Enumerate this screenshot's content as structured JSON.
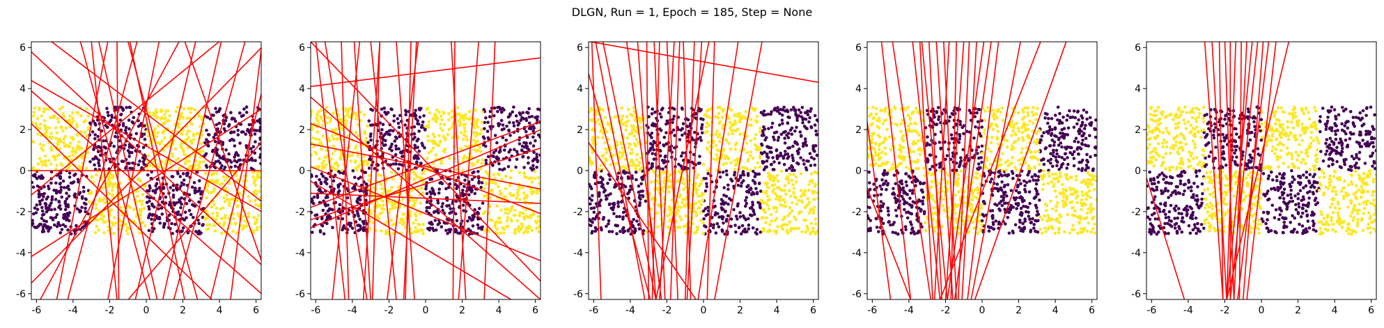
{
  "figure": {
    "title": "DLGN, Run = 1, Epoch = 185, Step = None"
  },
  "chart_data": {
    "type": "scatter",
    "panel_count": 5,
    "xlim": [
      -6.28,
      6.28
    ],
    "ylim": [
      -6.28,
      6.28
    ],
    "xticks": [
      -6,
      -4,
      -2,
      0,
      2,
      4,
      6
    ],
    "yticks": [
      -6,
      -4,
      -2,
      0,
      2,
      4,
      6
    ],
    "grid": false,
    "legend": "none",
    "colors": {
      "class_0": "#440154",
      "class_1": "#fde725",
      "boundary": "#ff0000"
    },
    "data_region": {
      "x_range": [
        -6.28,
        6.28
      ],
      "y_range": [
        -3.1,
        3.1
      ]
    },
    "class_rule": "yellow where sign(sin(x)) equals sign(y); dark purple elsewhere",
    "points_per_panel": 1500,
    "panels": [
      {
        "boundary_lines": [
          [
            -6.3,
            5.8,
            6.3,
            -4.6
          ],
          [
            -6.3,
            4.4,
            6.3,
            -2.0
          ],
          [
            -6.3,
            3.9,
            6.3,
            -6.0
          ],
          [
            -6.3,
            -4.2,
            6.3,
            3.0
          ],
          [
            -6.3,
            -5.5,
            6.3,
            6.0
          ],
          [
            -6.3,
            0.0,
            6.3,
            0.0
          ],
          [
            -4.3,
            -6.3,
            -0.5,
            6.3
          ],
          [
            -3.0,
            6.3,
            -1.6,
            -6.3
          ],
          [
            -2.6,
            6.3,
            0.6,
            -6.3
          ],
          [
            -2.1,
            6.3,
            -4.9,
            -6.3
          ],
          [
            -1.6,
            6.3,
            -1.5,
            -6.3
          ],
          [
            -0.9,
            6.3,
            2.1,
            -6.3
          ],
          [
            -0.6,
            -6.3,
            2.7,
            6.3
          ],
          [
            0.2,
            -6.3,
            -3.6,
            6.3
          ],
          [
            0.7,
            6.3,
            -2.1,
            -6.3
          ],
          [
            1.5,
            -6.3,
            5.4,
            6.3
          ],
          [
            2.1,
            6.3,
            6.3,
            -4.4
          ],
          [
            3.5,
            -6.3,
            6.3,
            3.8
          ],
          [
            4.1,
            6.3,
            0.9,
            -6.3
          ],
          [
            4.6,
            -6.3,
            6.3,
            6.0
          ],
          [
            -6.3,
            2.3,
            3.6,
            -6.3
          ],
          [
            -5.2,
            6.3,
            6.3,
            -1.5
          ],
          [
            -6.3,
            -1.2,
            4.0,
            6.3
          ],
          [
            -1.0,
            -6.3,
            6.3,
            1.4
          ],
          [
            -5.8,
            -6.3,
            1.8,
            6.3
          ],
          [
            2.8,
            -6.3,
            -1.0,
            6.3
          ]
        ]
      },
      {
        "boundary_lines": [
          [
            -6.3,
            4.1,
            6.3,
            5.5
          ],
          [
            -6.3,
            3.6,
            6.3,
            -6.3
          ],
          [
            -6.3,
            0.2,
            6.3,
            -4.4
          ],
          [
            -6.3,
            -1.8,
            6.3,
            2.4
          ],
          [
            -6.3,
            -2.4,
            6.3,
            1.1
          ],
          [
            -6.3,
            -1.1,
            6.3,
            -1.6
          ],
          [
            -6.3,
            -0.5,
            4.7,
            -6.3
          ],
          [
            -6.3,
            2.3,
            6.3,
            -2.1
          ],
          [
            -6.3,
            -2.8,
            6.3,
            2.0
          ],
          [
            -6.0,
            6.3,
            -4.4,
            -6.3
          ],
          [
            -5.5,
            6.3,
            -3.2,
            -6.3
          ],
          [
            -5.1,
            -6.3,
            -3.6,
            6.3
          ],
          [
            -4.6,
            6.3,
            -4.2,
            -6.3
          ],
          [
            -3.9,
            6.3,
            -3.0,
            -6.3
          ],
          [
            -3.4,
            -6.3,
            -2.5,
            6.3
          ],
          [
            -3.0,
            6.3,
            -1.6,
            -6.3
          ],
          [
            -2.5,
            6.3,
            -2.9,
            -6.3
          ],
          [
            -2.1,
            -6.3,
            -0.4,
            6.3
          ],
          [
            -1.6,
            6.3,
            -0.6,
            -6.3
          ],
          [
            -1.2,
            -6.3,
            -0.5,
            6.3
          ],
          [
            -0.8,
            6.3,
            -1.1,
            -6.3
          ],
          [
            1.6,
            6.3,
            1.5,
            -6.3
          ],
          [
            1.4,
            6.3,
            2.2,
            -6.3
          ],
          [
            1.8,
            -6.3,
            2.9,
            6.3
          ],
          [
            3.2,
            -6.3,
            3.8,
            6.3
          ],
          [
            -6.3,
            6.3,
            6.3,
            -5.4
          ],
          [
            -6.3,
            1.3,
            6.3,
            -0.9
          ]
        ]
      },
      {
        "boundary_lines": [
          [
            -6.3,
            6.3,
            6.3,
            4.3
          ],
          [
            -6.3,
            4.8,
            -2.9,
            -6.3
          ],
          [
            -6.3,
            1.4,
            -0.4,
            -6.3
          ],
          [
            -5.9,
            6.3,
            -3.2,
            -6.3
          ],
          [
            -5.5,
            6.3,
            -2.6,
            -6.3
          ],
          [
            -4.2,
            6.3,
            -2.3,
            -6.3
          ],
          [
            -3.6,
            6.3,
            -2.6,
            -6.3
          ],
          [
            -3.1,
            6.3,
            -3.0,
            -6.3
          ],
          [
            -2.7,
            6.3,
            -2.1,
            -6.3
          ],
          [
            -2.4,
            6.3,
            -2.8,
            -6.3
          ],
          [
            -2.0,
            6.3,
            -1.4,
            -6.3
          ],
          [
            -1.6,
            6.3,
            -2.4,
            -6.3
          ],
          [
            -1.3,
            6.3,
            -1.8,
            -6.3
          ],
          [
            -1.1,
            6.3,
            -0.7,
            -6.3
          ],
          [
            -0.5,
            6.3,
            -1.0,
            -6.3
          ],
          [
            -0.1,
            6.3,
            -0.9,
            -6.3
          ],
          [
            0.3,
            6.3,
            -2.6,
            -6.3
          ],
          [
            0.6,
            6.3,
            0.2,
            -6.3
          ],
          [
            1.9,
            6.3,
            -0.3,
            -6.3
          ],
          [
            3.2,
            6.3,
            0.6,
            -6.3
          ],
          [
            -6.1,
            6.3,
            -5.6,
            -6.3
          ]
        ]
      },
      {
        "boundary_lines": [
          [
            -6.3,
            2.5,
            -5.0,
            -6.3
          ],
          [
            -6.3,
            -0.8,
            -3.9,
            -6.3
          ],
          [
            -5.5,
            6.3,
            -3.9,
            -6.3
          ],
          [
            -4.9,
            6.3,
            -2.8,
            -6.3
          ],
          [
            -3.8,
            6.3,
            -2.3,
            -6.3
          ],
          [
            -3.3,
            6.3,
            -1.9,
            -6.3
          ],
          [
            -2.9,
            6.3,
            -2.2,
            -6.3
          ],
          [
            -2.5,
            6.3,
            -1.6,
            -6.3
          ],
          [
            -2.1,
            6.3,
            -1.4,
            -6.3
          ],
          [
            -1.8,
            6.3,
            -2.6,
            -6.3
          ],
          [
            -1.4,
            6.3,
            -1.7,
            -6.3
          ],
          [
            -1.0,
            6.3,
            -2.0,
            -6.3
          ],
          [
            -0.7,
            6.3,
            -1.3,
            -6.3
          ],
          [
            -0.3,
            6.3,
            -1.1,
            -6.3
          ],
          [
            0.1,
            6.3,
            -1.9,
            -6.3
          ],
          [
            0.5,
            6.3,
            -1.5,
            -6.3
          ],
          [
            0.9,
            6.3,
            -0.8,
            -6.3
          ],
          [
            2.1,
            6.3,
            -0.6,
            -6.3
          ],
          [
            3.2,
            6.3,
            -2.3,
            -6.3
          ],
          [
            4.6,
            6.3,
            -0.4,
            -6.3
          ],
          [
            -3.4,
            6.3,
            -2.7,
            -6.3
          ]
        ]
      },
      {
        "boundary_lines": [
          [
            -6.3,
            -0.3,
            -4.2,
            -6.3
          ],
          [
            -3.1,
            6.3,
            -2.1,
            -6.3
          ],
          [
            -2.7,
            6.3,
            -1.9,
            -6.3
          ],
          [
            -2.3,
            6.3,
            -2.1,
            -6.3
          ],
          [
            -2.0,
            6.3,
            -1.5,
            -6.3
          ],
          [
            -1.7,
            6.3,
            -1.7,
            -6.3
          ],
          [
            -1.4,
            6.3,
            -1.9,
            -6.3
          ],
          [
            -1.1,
            6.3,
            -1.2,
            -6.3
          ],
          [
            -0.8,
            6.3,
            -1.5,
            -6.3
          ],
          [
            -0.5,
            6.3,
            -1.9,
            -6.3
          ],
          [
            -0.2,
            6.3,
            -1.7,
            -6.3
          ],
          [
            0.1,
            6.3,
            -1.0,
            -6.3
          ],
          [
            0.4,
            6.3,
            -1.3,
            -6.3
          ],
          [
            0.8,
            6.3,
            -0.8,
            -6.3
          ],
          [
            1.5,
            6.3,
            -1.9,
            -6.3
          ]
        ]
      }
    ]
  }
}
